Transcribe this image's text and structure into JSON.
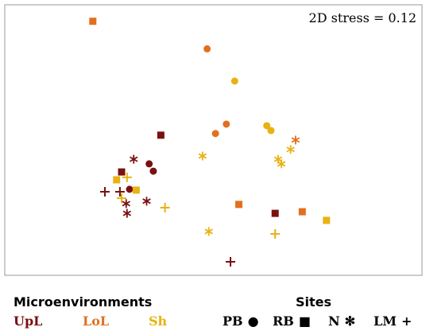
{
  "chart_data": {
    "type": "scatter",
    "title": "",
    "xlabel": "",
    "ylabel": "",
    "annotation": "2D stress = 0.12",
    "xlim": [
      0,
      100
    ],
    "ylim": [
      0,
      100
    ],
    "grid": false,
    "legend_placement": "bottom",
    "microenvironments": [
      {
        "key": "UpL",
        "color": "#7a1010"
      },
      {
        "key": "LoL",
        "color": "#e36f1e"
      },
      {
        "key": "Sh",
        "color": "#e8b213"
      }
    ],
    "sites": [
      {
        "key": "PB",
        "marker": "circle"
      },
      {
        "key": "RB",
        "marker": "square"
      },
      {
        "key": "N",
        "marker": "asterisk"
      },
      {
        "key": "LM",
        "marker": "plus"
      }
    ],
    "points": [
      {
        "x": 21.1,
        "y": 93.9,
        "site": "RB",
        "env": "LoL"
      },
      {
        "x": 48.5,
        "y": 83.7,
        "site": "PB",
        "env": "LoL"
      },
      {
        "x": 55.1,
        "y": 71.8,
        "site": "PB",
        "env": "Sh"
      },
      {
        "x": 53.1,
        "y": 55.9,
        "site": "PB",
        "env": "LoL"
      },
      {
        "x": 50.5,
        "y": 52.4,
        "site": "PB",
        "env": "LoL"
      },
      {
        "x": 62.8,
        "y": 55.3,
        "site": "PB",
        "env": "Sh"
      },
      {
        "x": 63.8,
        "y": 53.5,
        "site": "PB",
        "env": "Sh"
      },
      {
        "x": 69.7,
        "y": 50.0,
        "site": "N",
        "env": "LoL"
      },
      {
        "x": 68.5,
        "y": 46.5,
        "site": "N",
        "env": "Sh"
      },
      {
        "x": 47.4,
        "y": 44.1,
        "site": "N",
        "env": "Sh"
      },
      {
        "x": 65.5,
        "y": 42.9,
        "site": "N",
        "env": "Sh"
      },
      {
        "x": 66.3,
        "y": 41.2,
        "site": "N",
        "env": "Sh"
      },
      {
        "x": 37.4,
        "y": 51.8,
        "site": "RB",
        "env": "UpL"
      },
      {
        "x": 30.9,
        "y": 42.9,
        "site": "N",
        "env": "UpL"
      },
      {
        "x": 34.6,
        "y": 41.2,
        "site": "PB",
        "env": "UpL"
      },
      {
        "x": 35.6,
        "y": 38.5,
        "site": "PB",
        "env": "UpL"
      },
      {
        "x": 28.0,
        "y": 38.2,
        "site": "RB",
        "env": "UpL"
      },
      {
        "x": 29.3,
        "y": 36.2,
        "site": "LM",
        "env": "Sh"
      },
      {
        "x": 26.8,
        "y": 35.3,
        "site": "RB",
        "env": "Sh"
      },
      {
        "x": 24.0,
        "y": 30.9,
        "site": "LM",
        "env": "UpL"
      },
      {
        "x": 27.6,
        "y": 30.9,
        "site": "LM",
        "env": "UpL"
      },
      {
        "x": 29.9,
        "y": 31.8,
        "site": "PB",
        "env": "UpL"
      },
      {
        "x": 31.5,
        "y": 31.5,
        "site": "RB",
        "env": "Sh"
      },
      {
        "x": 28.0,
        "y": 28.5,
        "site": "LM",
        "env": "Sh"
      },
      {
        "x": 29.1,
        "y": 26.5,
        "site": "N",
        "env": "UpL"
      },
      {
        "x": 34.0,
        "y": 27.4,
        "site": "N",
        "env": "UpL"
      },
      {
        "x": 38.4,
        "y": 25.0,
        "site": "LM",
        "env": "Sh"
      },
      {
        "x": 29.3,
        "y": 22.9,
        "site": "N",
        "env": "UpL"
      },
      {
        "x": 56.1,
        "y": 26.2,
        "site": "RB",
        "env": "LoL"
      },
      {
        "x": 48.9,
        "y": 16.2,
        "site": "N",
        "env": "Sh"
      },
      {
        "x": 64.8,
        "y": 22.9,
        "site": "RB",
        "env": "UpL"
      },
      {
        "x": 64.8,
        "y": 15.3,
        "site": "LM",
        "env": "Sh"
      },
      {
        "x": 71.3,
        "y": 23.5,
        "site": "RB",
        "env": "LoL"
      },
      {
        "x": 77.1,
        "y": 20.3,
        "site": "RB",
        "env": "Sh"
      },
      {
        "x": 54.1,
        "y": 5.0,
        "site": "LM",
        "env": "UpL"
      }
    ]
  },
  "legend": {
    "microenvironments_title": "Microenvironments",
    "sites_title": "Sites",
    "env_labels": [
      "UpL",
      "LoL",
      "Sh"
    ],
    "site_labels": [
      "PB",
      "RB",
      "N",
      "LM"
    ],
    "site_symbols": [
      "●",
      "■",
      "✻",
      "+"
    ]
  }
}
